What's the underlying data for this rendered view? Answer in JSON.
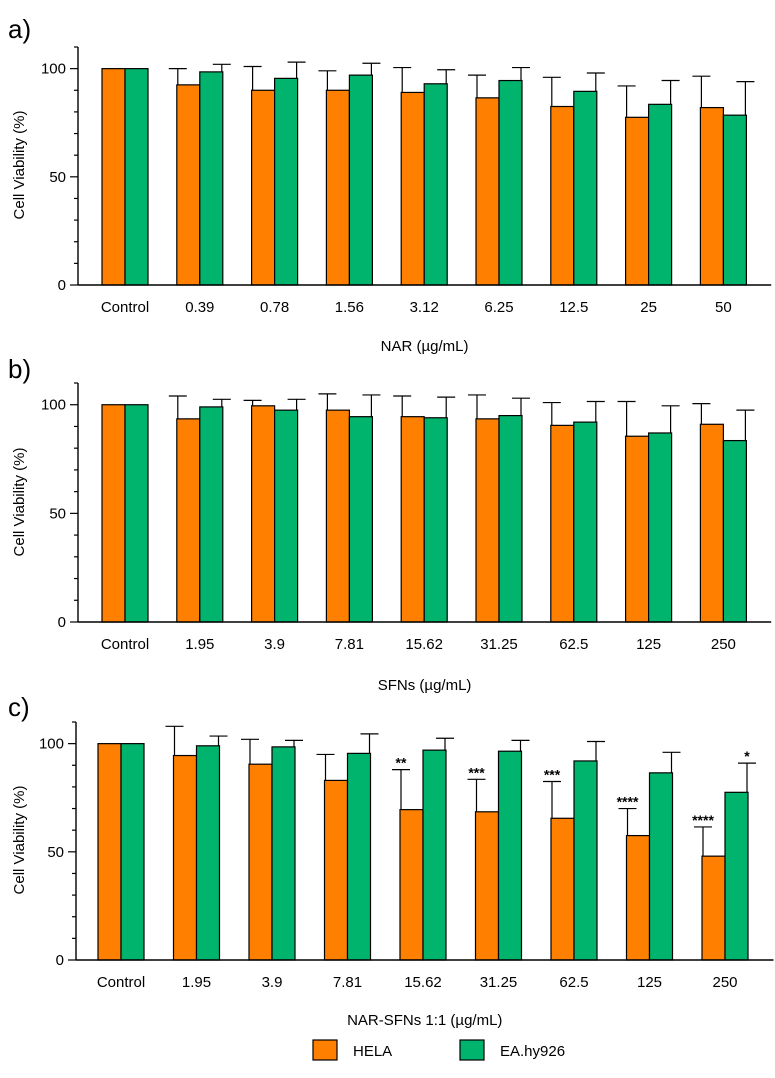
{
  "colors": {
    "hela": "#ff8000",
    "ea": "#00b46e",
    "axis": "#000000"
  },
  "legend": {
    "items": [
      "HELA",
      "EA.hy926"
    ]
  },
  "chart_data": [
    {
      "type": "bar",
      "panel": "a)",
      "ylabel": "Cell Viability (%)",
      "xlabel": "NAR (µg/mL)",
      "ylim": [
        0,
        110
      ],
      "yticks": [
        0,
        50,
        100
      ],
      "categories": [
        "Control",
        "0.39",
        "0.78",
        "1.56",
        "3.12",
        "6.25",
        "12.5",
        "25",
        "50"
      ],
      "series": [
        {
          "name": "HELA",
          "values": [
            100,
            92.5,
            90,
            90,
            89,
            86.5,
            82.5,
            77.5,
            82
          ],
          "errors": [
            0,
            7.5,
            11,
            9,
            11.5,
            10.5,
            13.5,
            14.5,
            14.5
          ],
          "sig": [
            "",
            "",
            "",
            "",
            "",
            "",
            "",
            "",
            ""
          ]
        },
        {
          "name": "EA.hy926",
          "values": [
            100,
            98.5,
            95.5,
            97,
            93,
            94.5,
            89.5,
            83.5,
            78.5
          ],
          "errors": [
            0,
            3.5,
            7.5,
            5.5,
            6.5,
            6,
            8.5,
            11,
            15.5
          ],
          "sig": [
            "",
            "",
            "",
            "",
            "",
            "",
            "",
            "",
            ""
          ]
        }
      ]
    },
    {
      "type": "bar",
      "panel": "b)",
      "ylabel": "Cell Viability (%)",
      "xlabel": "SFNs (µg/mL)",
      "ylim": [
        0,
        110
      ],
      "yticks": [
        0,
        50,
        100
      ],
      "categories": [
        "Control",
        "1.95",
        "3.9",
        "7.81",
        "15.62",
        "31.25",
        "62.5",
        "125",
        "250"
      ],
      "series": [
        {
          "name": "HELA",
          "values": [
            100,
            93.5,
            99.5,
            97.5,
            94.5,
            93.5,
            90.5,
            85.5,
            91
          ],
          "errors": [
            0,
            10.5,
            2.5,
            7.5,
            9.5,
            11,
            10.5,
            16,
            9.5
          ],
          "sig": [
            "",
            "",
            "",
            "",
            "",
            "",
            "",
            "",
            ""
          ]
        },
        {
          "name": "EA.hy926",
          "values": [
            100,
            99,
            97.5,
            94.5,
            94,
            95,
            92,
            87,
            83.5
          ],
          "errors": [
            0,
            3.5,
            5,
            10,
            9.5,
            8,
            9.5,
            12.5,
            14
          ],
          "sig": [
            "",
            "",
            "",
            "",
            "",
            "",
            "",
            "",
            ""
          ]
        }
      ]
    },
    {
      "type": "bar",
      "panel": "c)",
      "ylabel": "Cell Viability (%)",
      "xlabel": "NAR-SFNs 1:1 (µg/mL)",
      "ylim": [
        0,
        110
      ],
      "yticks": [
        0,
        50,
        100
      ],
      "categories": [
        "Control",
        "1.95",
        "3.9",
        "7.81",
        "15.62",
        "31.25",
        "62.5",
        "125",
        "250"
      ],
      "series": [
        {
          "name": "HELA",
          "values": [
            100,
            94.5,
            90.5,
            83,
            69.5,
            68.5,
            65.5,
            57.5,
            48
          ],
          "errors": [
            0,
            13.5,
            11.5,
            12,
            18.5,
            15,
            17,
            12.5,
            13.5
          ],
          "sig": [
            "",
            "",
            "",
            "",
            "**",
            "***",
            "***",
            "****",
            "****"
          ]
        },
        {
          "name": "EA.hy926",
          "values": [
            100,
            99,
            98.5,
            95.5,
            97,
            96.5,
            92,
            86.5,
            77.5
          ],
          "errors": [
            0,
            4.5,
            3,
            9,
            5.5,
            5,
            9,
            9.5,
            13.5
          ],
          "sig": [
            "",
            "",
            "",
            "",
            "",
            "",
            "",
            "",
            "*"
          ]
        }
      ]
    }
  ]
}
